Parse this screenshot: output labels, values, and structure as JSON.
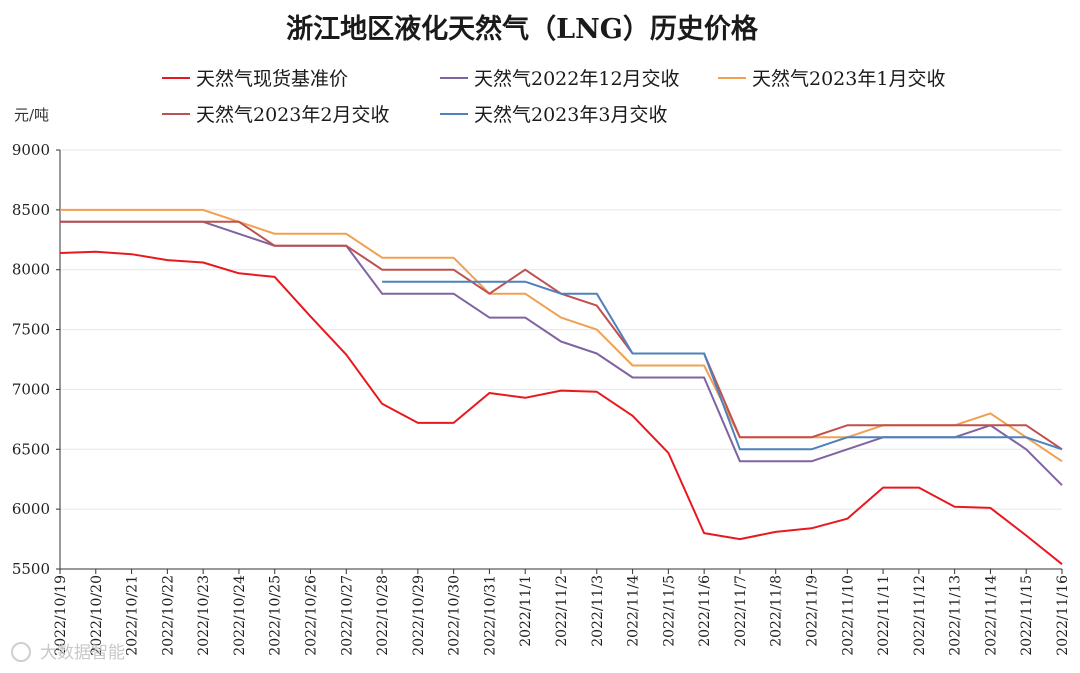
{
  "chart_data": {
    "type": "line",
    "title": "浙江地区液化天然气（LNG）历史价格",
    "ylabel": "元/吨",
    "xlabel": "",
    "ylim": [
      5500,
      9000
    ],
    "yticks": [
      5500,
      6000,
      6500,
      7000,
      7500,
      8000,
      8500,
      9000
    ],
    "categories": [
      "2022/10/19",
      "2022/10/20",
      "2022/10/21",
      "2022/10/22",
      "2022/10/23",
      "2022/10/24",
      "2022/10/25",
      "2022/10/26",
      "2022/10/27",
      "2022/10/28",
      "2022/10/29",
      "2022/10/30",
      "2022/10/31",
      "2022/11/1",
      "2022/11/2",
      "2022/11/3",
      "2022/11/4",
      "2022/11/5",
      "2022/11/6",
      "2022/11/7",
      "2022/11/8",
      "2022/11/9",
      "2022/11/10",
      "2022/11/11",
      "2022/11/12",
      "2022/11/13",
      "2022/11/14",
      "2022/11/15",
      "2022/11/16"
    ],
    "series": [
      {
        "name": "天然气现货基准价",
        "color": "#e8191e",
        "values": [
          8140,
          8150,
          8130,
          8080,
          8060,
          7970,
          7940,
          7610,
          7290,
          6880,
          6720,
          6720,
          6970,
          6930,
          6990,
          6980,
          6780,
          6470,
          5800,
          5750,
          5810,
          5840,
          5920,
          6180,
          6180,
          6020,
          6010,
          5780,
          5540
        ]
      },
      {
        "name": "天然气2022年12月交收",
        "color": "#8064a2",
        "values": [
          8400,
          8400,
          8400,
          8400,
          8400,
          8300,
          8200,
          8200,
          8200,
          7800,
          7800,
          7800,
          7600,
          7600,
          7400,
          7300,
          7100,
          7100,
          7100,
          6400,
          6400,
          6400,
          6500,
          6600,
          6600,
          6600,
          6700,
          6500,
          6200
        ]
      },
      {
        "name": "天然气2023年1月交收",
        "color": "#f0a050",
        "values": [
          8500,
          8500,
          8500,
          8500,
          8500,
          8400,
          8300,
          8300,
          8300,
          8100,
          8100,
          8100,
          7800,
          7800,
          7600,
          7500,
          7200,
          7200,
          7200,
          6600,
          6600,
          6600,
          6600,
          6700,
          6700,
          6700,
          6800,
          6600,
          6400
        ]
      },
      {
        "name": "天然气2023年2月交收",
        "color": "#c0504d",
        "values": [
          8400,
          8400,
          8400,
          8400,
          8400,
          8400,
          8200,
          8200,
          8200,
          8000,
          8000,
          8000,
          7800,
          8000,
          7800,
          7700,
          7300,
          7300,
          7300,
          6600,
          6600,
          6600,
          6700,
          6700,
          6700,
          6700,
          6700,
          6700,
          6500
        ]
      },
      {
        "name": "天然气2023年3月交收",
        "color": "#4f81bd",
        "values": [
          null,
          null,
          null,
          null,
          null,
          null,
          null,
          null,
          null,
          7900,
          7900,
          7900,
          7900,
          7900,
          7800,
          7800,
          7300,
          7300,
          7300,
          6500,
          6500,
          6500,
          6600,
          6600,
          6600,
          6600,
          6600,
          6600,
          6500
        ]
      }
    ]
  },
  "watermark": {
    "text": "大数据智能"
  }
}
